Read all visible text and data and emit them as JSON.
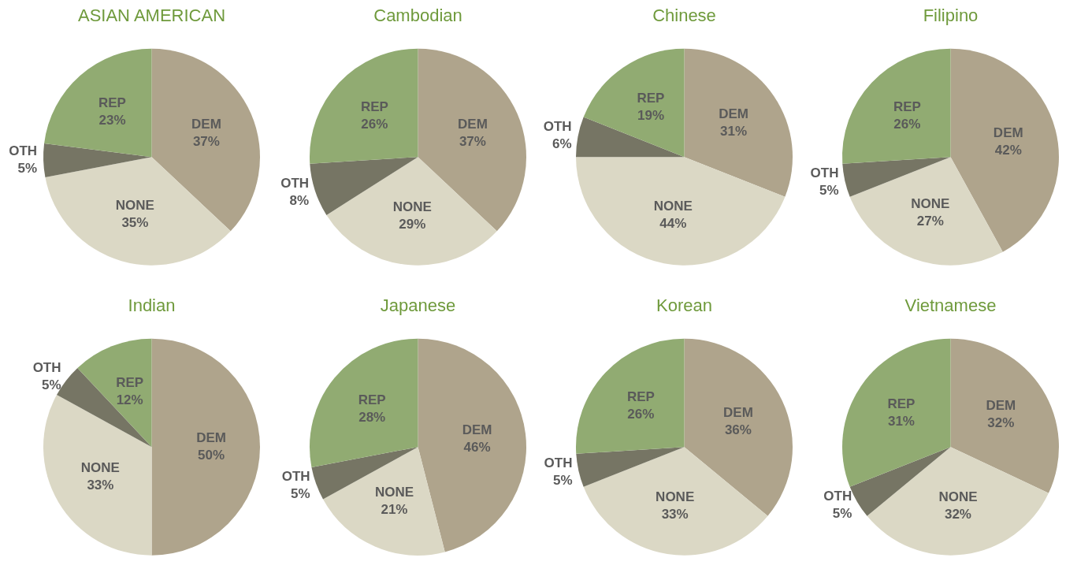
{
  "chart_data": [
    {
      "type": "pie",
      "title": "ASIAN AMERICAN",
      "categories": [
        "DEM",
        "NONE",
        "OTH",
        "REP"
      ],
      "values": [
        37,
        35,
        5,
        23
      ],
      "value_labels": [
        "37%",
        "35%",
        "5%",
        "23%"
      ],
      "colors": [
        "#afa48c",
        "#dbd8c5",
        "#767564",
        "#91ab72"
      ],
      "legend": false
    },
    {
      "type": "pie",
      "title": "Cambodian",
      "categories": [
        "DEM",
        "NONE",
        "OTH",
        "REP"
      ],
      "values": [
        37,
        29,
        8,
        26
      ],
      "value_labels": [
        "37%",
        "29%",
        "8%",
        "26%"
      ],
      "colors": [
        "#afa48c",
        "#dbd8c5",
        "#767564",
        "#91ab72"
      ],
      "legend": false
    },
    {
      "type": "pie",
      "title": "Chinese",
      "categories": [
        "DEM",
        "NONE",
        "OTH",
        "REP"
      ],
      "values": [
        31,
        44,
        6,
        19
      ],
      "value_labels": [
        "31%",
        "44%",
        "6%",
        "19%"
      ],
      "colors": [
        "#afa48c",
        "#dbd8c5",
        "#767564",
        "#91ab72"
      ],
      "legend": false
    },
    {
      "type": "pie",
      "title": "Filipino",
      "categories": [
        "DEM",
        "NONE",
        "OTH",
        "REP"
      ],
      "values": [
        42,
        27,
        5,
        26
      ],
      "value_labels": [
        "42%",
        "27%",
        "5%",
        "26%"
      ],
      "colors": [
        "#afa48c",
        "#dbd8c5",
        "#767564",
        "#91ab72"
      ],
      "legend": false
    },
    {
      "type": "pie",
      "title": "Indian",
      "categories": [
        "DEM",
        "NONE",
        "OTH",
        "REP"
      ],
      "values": [
        50,
        33,
        5,
        12
      ],
      "value_labels": [
        "50%",
        "33%",
        "5%",
        "12%"
      ],
      "colors": [
        "#afa48c",
        "#dbd8c5",
        "#767564",
        "#91ab72"
      ],
      "legend": false
    },
    {
      "type": "pie",
      "title": "Japanese",
      "categories": [
        "DEM",
        "NONE",
        "OTH",
        "REP"
      ],
      "values": [
        46,
        21,
        5,
        28
      ],
      "value_labels": [
        "46%",
        "21%",
        "5%",
        "28%"
      ],
      "colors": [
        "#afa48c",
        "#dbd8c5",
        "#767564",
        "#91ab72"
      ],
      "legend": false
    },
    {
      "type": "pie",
      "title": "Korean",
      "categories": [
        "DEM",
        "NONE",
        "OTH",
        "REP"
      ],
      "values": [
        36,
        33,
        5,
        26
      ],
      "value_labels": [
        "36%",
        "33%",
        "5%",
        "26%"
      ],
      "colors": [
        "#afa48c",
        "#dbd8c5",
        "#767564",
        "#91ab72"
      ],
      "legend": false
    },
    {
      "type": "pie",
      "title": "Vietnamese",
      "categories": [
        "DEM",
        "NONE",
        "OTH",
        "REP"
      ],
      "values": [
        32,
        32,
        5,
        31
      ],
      "value_labels": [
        "32%",
        "32%",
        "5%",
        "31%"
      ],
      "colors": [
        "#afa48c",
        "#dbd8c5",
        "#767564",
        "#91ab72"
      ],
      "legend": false
    }
  ]
}
